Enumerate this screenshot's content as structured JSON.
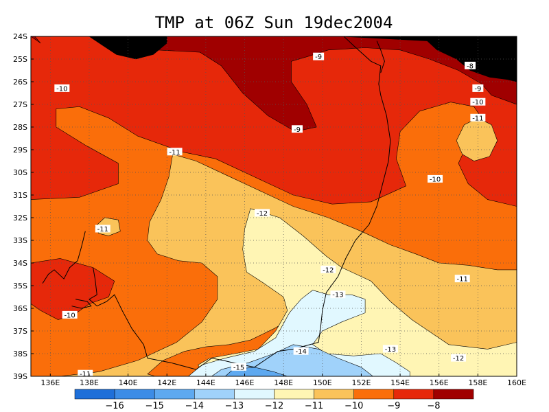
{
  "chart_data": {
    "type": "heatmap",
    "title": "TMP at 06Z Sun 19dec2004",
    "x_tick_labels": [
      "136E",
      "138E",
      "140E",
      "142E",
      "144E",
      "146E",
      "148E",
      "150E",
      "152E",
      "154E",
      "156E",
      "158E",
      "160E"
    ],
    "y_tick_labels": [
      "24S",
      "25S",
      "26S",
      "27S",
      "28S",
      "29S",
      "30S",
      "31S",
      "32S",
      "33S",
      "34S",
      "35S",
      "36S",
      "37S",
      "38S",
      "39S"
    ],
    "xlim": [
      135,
      160
    ],
    "ylim": [
      -39,
      -24
    ],
    "grid": true,
    "legend_placement": "bottom",
    "colorbar": {
      "levels": [
        -16,
        -15,
        -14,
        -13,
        -12,
        -11,
        -10,
        -9,
        -8
      ],
      "labels": [
        "-16",
        "-15",
        "-14",
        "-13",
        "-12",
        "-11",
        "-10",
        "-9",
        "-8"
      ],
      "colors": [
        "#1e6fd9",
        "#3c8ce6",
        "#5ea9f0",
        "#a0d2fa",
        "#e1f8ff",
        "#fff5b4",
        "#fac35a",
        "#fa6e0a",
        "#e6280a",
        "#a00000"
      ]
    },
    "contour_labels": [
      {
        "text": "-9",
        "lon": 149.8,
        "lat": -24.9
      },
      {
        "text": "-8",
        "lon": 157.6,
        "lat": -25.3
      },
      {
        "text": "-10",
        "lon": 136.6,
        "lat": -26.3
      },
      {
        "text": "-9",
        "lon": 158.0,
        "lat": -26.3
      },
      {
        "text": "-10",
        "lon": 158.0,
        "lat": -26.9
      },
      {
        "text": "-11",
        "lon": 158.0,
        "lat": -27.6
      },
      {
        "text": "-9",
        "lon": 148.7,
        "lat": -28.1
      },
      {
        "text": "-11",
        "lon": 142.4,
        "lat": -29.1
      },
      {
        "text": "-10",
        "lon": 155.8,
        "lat": -30.3
      },
      {
        "text": "-12",
        "lon": 146.9,
        "lat": -31.8
      },
      {
        "text": "-11",
        "lon": 138.7,
        "lat": -32.5
      },
      {
        "text": "-12",
        "lon": 150.3,
        "lat": -34.3
      },
      {
        "text": "-11",
        "lon": 157.2,
        "lat": -34.7
      },
      {
        "text": "-13",
        "lon": 150.8,
        "lat": -35.4
      },
      {
        "text": "-10",
        "lon": 137.0,
        "lat": -36.3
      },
      {
        "text": "-13",
        "lon": 153.5,
        "lat": -37.8
      },
      {
        "text": "-14",
        "lon": 148.9,
        "lat": -37.9
      },
      {
        "text": "-12",
        "lon": 157.0,
        "lat": -38.2
      },
      {
        "text": "-15",
        "lon": 145.7,
        "lat": -38.6
      },
      {
        "text": "-11",
        "lon": 137.8,
        "lat": -38.9
      }
    ],
    "regions": [
      {
        "level": 8,
        "points": [
          [
            135,
            -24
          ],
          [
            160,
            -24
          ],
          [
            160,
            -31.5
          ],
          [
            158.5,
            -31.2
          ],
          [
            157.5,
            -30.5
          ],
          [
            157,
            -29.6
          ],
          [
            157.6,
            -28.5
          ],
          [
            158.2,
            -27.6
          ],
          [
            157.8,
            -27.1
          ],
          [
            156.6,
            -26.9
          ],
          [
            155,
            -27.3
          ],
          [
            154,
            -28.2
          ],
          [
            153.8,
            -29.4
          ],
          [
            154.3,
            -30.6
          ],
          [
            152.5,
            -31.3
          ],
          [
            150.5,
            -31.4
          ],
          [
            148.5,
            -31.0
          ],
          [
            146.5,
            -30.2
          ],
          [
            144.5,
            -29.4
          ],
          [
            142.8,
            -29.1
          ],
          [
            140.5,
            -28.4
          ],
          [
            139,
            -27.6
          ],
          [
            137.5,
            -27.1
          ],
          [
            136.3,
            -27.2
          ],
          [
            136.3,
            -28.0
          ],
          [
            137.8,
            -28.8
          ],
          [
            139.5,
            -29.6
          ],
          [
            139.5,
            -30.5
          ],
          [
            137.5,
            -31.1
          ],
          [
            135,
            -31.2
          ]
        ]
      },
      {
        "level": 8,
        "points": [
          [
            135,
            -34.0
          ],
          [
            136.5,
            -33.8
          ],
          [
            138.2,
            -34.2
          ],
          [
            139.3,
            -34.8
          ],
          [
            139.0,
            -35.5
          ],
          [
            138,
            -35.8
          ],
          [
            137.2,
            -36.3
          ],
          [
            136.4,
            -36.5
          ],
          [
            135.5,
            -36.1
          ],
          [
            135,
            -35.8
          ]
        ]
      },
      {
        "level": 9,
        "points": [
          [
            139,
            -24
          ],
          [
            160,
            -24
          ],
          [
            160,
            -27
          ],
          [
            158.7,
            -26.6
          ],
          [
            158.2,
            -26.1
          ],
          [
            157,
            -25.5
          ],
          [
            155.5,
            -25.0
          ],
          [
            154,
            -24.6
          ],
          [
            152.2,
            -24.5
          ],
          [
            150.3,
            -24.6
          ],
          [
            149.2,
            -24.9
          ],
          [
            148.4,
            -25.1
          ],
          [
            148.4,
            -26.0
          ],
          [
            149.2,
            -27.0
          ],
          [
            149.7,
            -28.0
          ],
          [
            148.6,
            -28.2
          ],
          [
            147.2,
            -27.5
          ],
          [
            145.9,
            -26.5
          ],
          [
            144.8,
            -25.3
          ],
          [
            143.7,
            -24.7
          ],
          [
            141.5,
            -24.6
          ],
          [
            139.8,
            -24.6
          ]
        ]
      },
      {
        "level": 9,
        "points": [
          [
            135,
            -24
          ],
          [
            135.2,
            -24
          ],
          [
            135.5,
            -24.3
          ]
        ]
      },
      {
        "level": 10,
        "points": [
          [
            151,
            -24
          ],
          [
            160,
            -24
          ],
          [
            160,
            -26
          ],
          [
            159.5,
            -25.9
          ],
          [
            158.6,
            -25.8
          ],
          [
            157.6,
            -25.5
          ],
          [
            156.9,
            -25.0
          ],
          [
            155.9,
            -24.6
          ],
          [
            155.4,
            -24.2
          ]
        ]
      },
      {
        "level": 10,
        "points": [
          [
            138,
            -24
          ],
          [
            142,
            -24
          ],
          [
            142.0,
            -24.3
          ],
          [
            141.3,
            -24.8
          ],
          [
            140.4,
            -25.0
          ],
          [
            139.4,
            -24.8
          ],
          [
            138.7,
            -24.4
          ]
        ]
      },
      {
        "level": 6,
        "points": [
          [
            142.3,
            -29.2
          ],
          [
            143.5,
            -29.5
          ],
          [
            145,
            -30.1
          ],
          [
            146.5,
            -30.7
          ],
          [
            148.5,
            -31.5
          ],
          [
            150.3,
            -32
          ],
          [
            152,
            -32.6
          ],
          [
            153.5,
            -33.2
          ],
          [
            154.8,
            -33.6
          ],
          [
            156,
            -34.0
          ],
          [
            157.5,
            -34.1
          ],
          [
            159,
            -34.3
          ],
          [
            160,
            -34.3
          ],
          [
            160,
            -37.6
          ],
          [
            159,
            -37.7
          ],
          [
            157.8,
            -38.0
          ],
          [
            156.6,
            -38.2
          ],
          [
            155.3,
            -38.0
          ],
          [
            154,
            -37.5
          ],
          [
            152.5,
            -36.8
          ],
          [
            151,
            -36.5
          ],
          [
            149.5,
            -36.2
          ],
          [
            148.5,
            -36.4
          ],
          [
            147.5,
            -36.9
          ],
          [
            146.3,
            -37.4
          ],
          [
            145.2,
            -37.6
          ],
          [
            144,
            -37.7
          ],
          [
            142.9,
            -37.9
          ],
          [
            141.8,
            -38.3
          ],
          [
            141.0,
            -38.9
          ],
          [
            141.4,
            -39
          ],
          [
            136.5,
            -39
          ],
          [
            138.5,
            -38.8
          ],
          [
            140.5,
            -38.3
          ],
          [
            142.5,
            -37.5
          ],
          [
            143.8,
            -36.6
          ],
          [
            144.6,
            -35.6
          ],
          [
            144.6,
            -34.6
          ],
          [
            143.8,
            -34.0
          ],
          [
            142.6,
            -33.9
          ],
          [
            141.5,
            -33.6
          ],
          [
            141.0,
            -33.0
          ],
          [
            141.1,
            -32.2
          ],
          [
            141.7,
            -31.2
          ],
          [
            142.1,
            -30.2
          ]
        ]
      },
      {
        "level": 6,
        "points": [
          [
            138.3,
            -32.4
          ],
          [
            138.8,
            -32.0
          ],
          [
            139.5,
            -32.1
          ],
          [
            139.6,
            -32.6
          ],
          [
            139.0,
            -32.8
          ],
          [
            138.5,
            -32.7
          ]
        ]
      },
      {
        "level": 6,
        "points": [
          [
            156.9,
            -28.6
          ],
          [
            157.3,
            -27.9
          ],
          [
            158.0,
            -27.6
          ],
          [
            158.7,
            -27.9
          ],
          [
            159.0,
            -28.6
          ],
          [
            158.6,
            -29.3
          ],
          [
            157.8,
            -29.5
          ],
          [
            157.2,
            -29.2
          ]
        ]
      },
      {
        "level": 5,
        "points": [
          [
            146.3,
            -31.6
          ],
          [
            147.8,
            -32.0
          ],
          [
            149.0,
            -32.8
          ],
          [
            150.2,
            -33.7
          ],
          [
            151.0,
            -34.2
          ],
          [
            152.5,
            -34.8
          ],
          [
            153.5,
            -35.7
          ],
          [
            154.6,
            -36.5
          ],
          [
            156.5,
            -37.6
          ],
          [
            158.5,
            -37.8
          ],
          [
            160,
            -37.5
          ],
          [
            160,
            -39
          ],
          [
            144.0,
            -39
          ],
          [
            143.6,
            -38.5
          ],
          [
            144.2,
            -38.2
          ],
          [
            145.5,
            -38.0
          ],
          [
            146.7,
            -37.8
          ],
          [
            147.6,
            -37.0
          ],
          [
            148.2,
            -36.1
          ],
          [
            148.0,
            -35.5
          ],
          [
            147.0,
            -34.9
          ],
          [
            146.1,
            -34.4
          ],
          [
            145.9,
            -33.4
          ],
          [
            146.0,
            -32.5
          ]
        ]
      },
      {
        "level": 4,
        "points": [
          [
            149.5,
            -35.2
          ],
          [
            150.3,
            -35.4
          ],
          [
            151.5,
            -35.4
          ],
          [
            152.2,
            -35.6
          ],
          [
            152.2,
            -36.2
          ],
          [
            151.0,
            -36.6
          ],
          [
            150.0,
            -37.0
          ],
          [
            149.5,
            -37.6
          ],
          [
            150.2,
            -38.0
          ],
          [
            151.6,
            -38.1
          ],
          [
            153.0,
            -38.0
          ],
          [
            153.8,
            -38.4
          ],
          [
            154.5,
            -38.8
          ],
          [
            154.5,
            -39
          ],
          [
            143.1,
            -39
          ],
          [
            143.8,
            -38.5
          ],
          [
            145.0,
            -38.2
          ],
          [
            146.5,
            -37.9
          ],
          [
            147.6,
            -37.3
          ],
          [
            148.3,
            -36.2
          ],
          [
            148.9,
            -35.6
          ]
        ]
      },
      {
        "level": 3,
        "points": [
          [
            144.8,
            -38.7
          ],
          [
            146.2,
            -38.4
          ],
          [
            147.5,
            -38.0
          ],
          [
            148.5,
            -37.6
          ],
          [
            149.8,
            -37.8
          ],
          [
            150.8,
            -38.2
          ],
          [
            152.0,
            -38.6
          ],
          [
            152.6,
            -39
          ],
          [
            144.3,
            -39
          ]
        ]
      },
      {
        "level": 2,
        "points": [
          [
            145.4,
            -38.7
          ],
          [
            146.5,
            -38.6
          ],
          [
            147.5,
            -38.8
          ],
          [
            148.2,
            -39
          ],
          [
            145.0,
            -39
          ]
        ]
      }
    ],
    "coastline": [
      [
        [
          151.1,
          -24.0
        ],
        [
          151.6,
          -24.4
        ],
        [
          152.5,
          -25.1
        ],
        [
          153.0,
          -25.3
        ],
        [
          152.9,
          -26.1
        ],
        [
          153.0,
          -26.6
        ],
        [
          153.3,
          -27.5
        ],
        [
          153.5,
          -28.6
        ],
        [
          153.4,
          -29.5
        ],
        [
          153.1,
          -30.5
        ],
        [
          152.8,
          -31.5
        ],
        [
          152.4,
          -32.3
        ],
        [
          151.7,
          -33.0
        ],
        [
          151.2,
          -33.8
        ],
        [
          150.8,
          -34.6
        ],
        [
          150.2,
          -35.3
        ],
        [
          150.0,
          -36.1
        ],
        [
          149.9,
          -36.9
        ],
        [
          149.8,
          -37.5
        ],
        [
          148.5,
          -37.8
        ],
        [
          147.7,
          -37.9
        ],
        [
          146.5,
          -38.6
        ],
        [
          145.4,
          -38.4
        ],
        [
          144.9,
          -38.3
        ],
        [
          144.3,
          -38.2
        ],
        [
          143.5,
          -38.7
        ],
        [
          142.2,
          -38.4
        ],
        [
          141.0,
          -38.2
        ]
      ],
      [
        [
          152.8,
          -24.2
        ],
        [
          153.0,
          -24.6
        ],
        [
          153.2,
          -25.1
        ],
        [
          153.0,
          -25.6
        ]
      ],
      [
        [
          137.8,
          -32.6
        ],
        [
          137.6,
          -33.3
        ],
        [
          137.4,
          -33.9
        ],
        [
          137.0,
          -34.2
        ],
        [
          136.7,
          -34.7
        ],
        [
          136.2,
          -34.3
        ],
        [
          135.9,
          -34.5
        ],
        [
          135.6,
          -34.9
        ]
      ],
      [
        [
          138.2,
          -34.2
        ],
        [
          138.3,
          -34.7
        ],
        [
          138.4,
          -35.4
        ],
        [
          138.0,
          -35.6
        ],
        [
          138.4,
          -35.9
        ],
        [
          138.9,
          -35.7
        ],
        [
          139.3,
          -35.4
        ],
        [
          139.7,
          -36.1
        ],
        [
          140.2,
          -36.9
        ],
        [
          140.8,
          -37.6
        ],
        [
          141.0,
          -38.2
        ]
      ],
      [
        [
          137.3,
          -35.6
        ],
        [
          137.9,
          -35.7
        ],
        [
          138.1,
          -35.9
        ],
        [
          137.6,
          -36.0
        ],
        [
          137.1,
          -35.9
        ]
      ]
    ]
  }
}
